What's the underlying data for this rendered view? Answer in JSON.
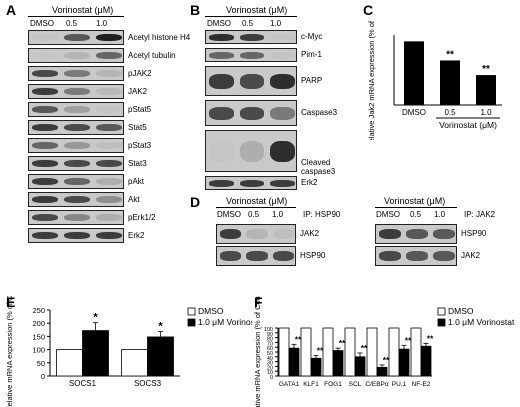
{
  "panel_labels": {
    "a": "A",
    "b": "B",
    "c": "C",
    "d": "D",
    "e": "E",
    "f": "F"
  },
  "treatment": "Vorinostat (μM)",
  "lanes": [
    "DMSO",
    "0.5",
    "1.0"
  ],
  "panel_a": {
    "rows": [
      {
        "label": "Acetyl histone H4",
        "bands": [
          0.1,
          0.75,
          0.95
        ]
      },
      {
        "label": "Acetyl tubulin",
        "bands": [
          0.05,
          0.25,
          0.7
        ]
      },
      {
        "label": "pJAK2",
        "bands": [
          0.8,
          0.6,
          0.25
        ]
      },
      {
        "label": "JAK2",
        "bands": [
          0.85,
          0.6,
          0.2
        ]
      },
      {
        "label": "pStat5",
        "bands": [
          0.75,
          0.4,
          0.1
        ]
      },
      {
        "label": "Stat5",
        "bands": [
          0.85,
          0.8,
          0.75
        ]
      },
      {
        "label": "pStat3",
        "bands": [
          0.7,
          0.45,
          0.15
        ]
      },
      {
        "label": "Stat3",
        "bands": [
          0.85,
          0.8,
          0.8
        ]
      },
      {
        "label": "pAkt",
        "bands": [
          0.85,
          0.7,
          0.3
        ]
      },
      {
        "label": "Akt",
        "bands": [
          0.85,
          0.8,
          0.5
        ]
      },
      {
        "label": "pErk1/2",
        "bands": [
          0.8,
          0.55,
          0.3
        ]
      },
      {
        "label": "Erk2",
        "bands": [
          0.85,
          0.85,
          0.85
        ]
      }
    ]
  },
  "panel_b": {
    "rows": [
      {
        "label": "c-Myc",
        "bands": [
          0.9,
          0.85,
          0.05
        ]
      },
      {
        "label": "Pim-1",
        "bands": [
          0.7,
          0.7,
          0.1
        ]
      },
      {
        "label": "PARP",
        "bands": [
          0.85,
          0.8,
          0.9
        ]
      },
      {
        "label": "Caspase3",
        "bands": [
          0.8,
          0.8,
          0.6
        ]
      },
      {
        "label": "Cleaved caspase3",
        "bands": [
          0.05,
          0.3,
          0.9
        ]
      },
      {
        "label": "Erk2",
        "bands": [
          0.85,
          0.85,
          0.85
        ]
      }
    ]
  },
  "panel_d": {
    "left": {
      "ip": "IP: HSP90",
      "rows": [
        {
          "label": "JAK2",
          "bands": [
            0.85,
            0.25,
            0.15
          ]
        },
        {
          "label": "HSP90",
          "bands": [
            0.8,
            0.8,
            0.8
          ]
        }
      ]
    },
    "right": {
      "ip": "IP: JAK2",
      "rows": [
        {
          "label": "HSP90",
          "bands": [
            0.85,
            0.75,
            0.75
          ]
        },
        {
          "label": "JAK2",
          "bands": [
            0.8,
            0.75,
            0.75
          ]
        }
      ]
    }
  },
  "chart_data": [
    {
      "type": "bar",
      "id": "C",
      "categories": [
        "DMSO",
        "0.5",
        "1.0"
      ],
      "values": [
        100,
        70,
        47
      ],
      "significance": [
        "",
        "**",
        "**"
      ],
      "ylabel": "Relative Jak2 mRNA expression (% of Control)",
      "xlabel": "Vorinostat (μM)",
      "ylim": [
        0,
        110
      ],
      "grid": false
    },
    {
      "type": "bar",
      "id": "E",
      "categories": [
        "SOCS1",
        "SOCS3"
      ],
      "series": [
        {
          "name": "DMSO",
          "values": [
            100,
            100
          ],
          "errors": [
            0,
            0
          ],
          "color": "#ffffff"
        },
        {
          "name": "1.0 μM Vorinostat",
          "values": [
            172,
            148
          ],
          "errors": [
            30,
            20
          ],
          "color": "#000000"
        }
      ],
      "significance": [
        "*",
        "*"
      ],
      "ylabel": "Relative mRNA expression (% of Control)",
      "yticks": [
        0,
        50,
        100,
        150,
        200,
        250
      ],
      "ylim": [
        0,
        250
      ],
      "legend": "right"
    },
    {
      "type": "bar",
      "id": "F",
      "categories": [
        "GATA1",
        "KLF1",
        "FOG1",
        "SCL",
        "C/EBPα",
        "PU.1",
        "NF-E2"
      ],
      "series": [
        {
          "name": "DMSO",
          "values": [
            100,
            100,
            100,
            100,
            100,
            100,
            100
          ],
          "errors": [
            0,
            0,
            0,
            0,
            0,
            0,
            0
          ],
          "color": "#ffffff"
        },
        {
          "name": "1.0 μM Vorinostat",
          "values": [
            58,
            37,
            53,
            40,
            18,
            56,
            62
          ],
          "errors": [
            8,
            6,
            5,
            8,
            5,
            8,
            6
          ],
          "color": "#000000"
        }
      ],
      "significance": [
        "**",
        "**",
        "**",
        "**",
        "**",
        "**",
        "**"
      ],
      "ylabel": "Relative mRNA expression (% of Control)",
      "yticks": [
        0,
        10,
        20,
        30,
        40,
        50,
        60,
        70,
        80,
        90,
        100
      ],
      "ylim": [
        0,
        100
      ],
      "legend": "right"
    }
  ]
}
